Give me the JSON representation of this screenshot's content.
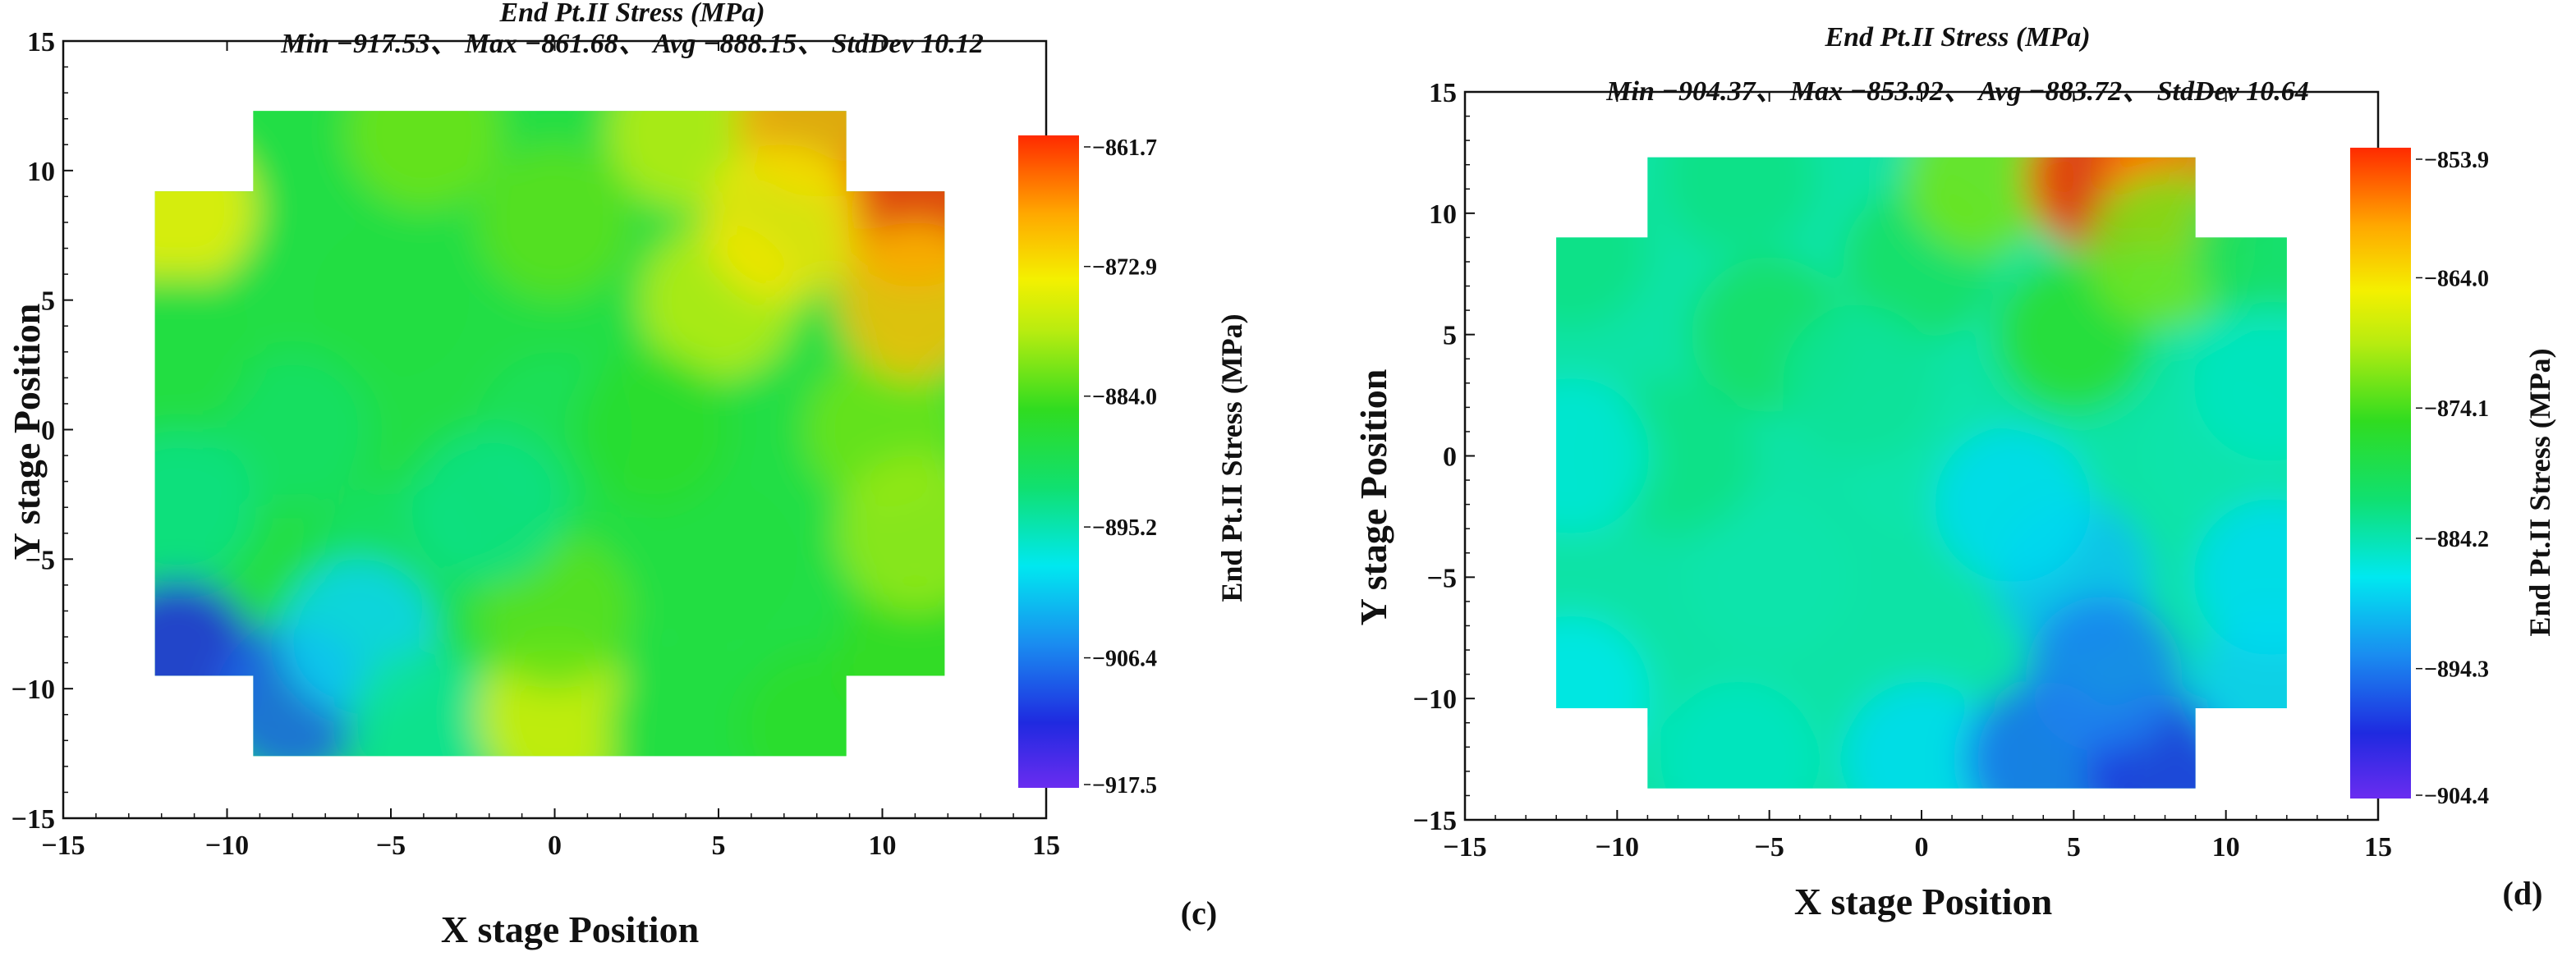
{
  "chart_data": [
    {
      "type": "heatmap",
      "panel_label": "(c)",
      "title": "End Pt.II Stress (MPa)",
      "stats_line": "Min −917.53、  Max −861.68、  Avg −888.15、  StdDev 10.12",
      "stats": {
        "min": -917.53,
        "max": -861.68,
        "avg": -888.15,
        "stddev": 10.12
      },
      "xlabel": "X stage Position",
      "ylabel": "Y stage Position",
      "xlim": [
        -15,
        15
      ],
      "ylim": [
        -15,
        15
      ],
      "x_ticks": [
        -15,
        -10,
        -5,
        0,
        5,
        10,
        15
      ],
      "y_ticks": [
        -15,
        -10,
        -5,
        0,
        5,
        10,
        15
      ],
      "x_tick_labels": [
        "−15",
        "−10",
        "−5",
        "0",
        "5",
        "10",
        "15"
      ],
      "y_tick_labels": [
        "−15",
        "−10",
        "−5",
        "0",
        "5",
        "10",
        "15"
      ],
      "region_outline": [
        [
          -9.2,
          12.3
        ],
        [
          8.9,
          12.3
        ],
        [
          8.9,
          9.2
        ],
        [
          11.9,
          9.2
        ],
        [
          11.9,
          -9.5
        ],
        [
          8.9,
          -9.5
        ],
        [
          8.9,
          -12.6
        ],
        [
          -9.2,
          -12.6
        ],
        [
          -9.2,
          -9.5
        ],
        [
          -12.2,
          -9.5
        ],
        [
          -12.2,
          9.2
        ],
        [
          -9.2,
          9.2
        ]
      ],
      "colorbar": {
        "label": "End Pt.II Stress (MPa)",
        "min": -917.53,
        "max": -861.68,
        "ticks": [
          -861.7,
          -872.9,
          -884.0,
          -895.2,
          -906.4,
          -917.5
        ],
        "tick_labels": [
          "−861.7",
          "−872.9",
          "−884.0",
          "−895.2",
          "−906.4",
          "−917.5"
        ]
      },
      "points": [
        {
          "x": 0,
          "y": 0,
          "v": -890
        },
        {
          "x": -5,
          "y": 5,
          "v": -888
        },
        {
          "x": 5,
          "y": 5,
          "v": -878
        },
        {
          "x": -5,
          "y": -5,
          "v": -891
        },
        {
          "x": 5,
          "y": -5,
          "v": -888
        },
        {
          "x": -8,
          "y": 0,
          "v": -891
        },
        {
          "x": 10,
          "y": 0,
          "v": -882
        },
        {
          "x": 0,
          "y": 8,
          "v": -883
        },
        {
          "x": -4,
          "y": 11.5,
          "v": -882
        },
        {
          "x": 4,
          "y": 11.5,
          "v": -878
        },
        {
          "x": 8,
          "y": 12,
          "v": -868
        },
        {
          "x": 11,
          "y": 8.5,
          "v": -862
        },
        {
          "x": 11,
          "y": 5,
          "v": -870
        },
        {
          "x": 7,
          "y": 8,
          "v": -873
        },
        {
          "x": -11.5,
          "y": 8.5,
          "v": -874
        },
        {
          "x": -11.5,
          "y": 3,
          "v": -888
        },
        {
          "x": -11.5,
          "y": -3,
          "v": -893
        },
        {
          "x": -11.5,
          "y": -8.8,
          "v": -912
        },
        {
          "x": -8,
          "y": -10.5,
          "v": -908
        },
        {
          "x": -6,
          "y": -8,
          "v": -900
        },
        {
          "x": -4,
          "y": -11.5,
          "v": -894
        },
        {
          "x": 0,
          "y": -11,
          "v": -876
        },
        {
          "x": 0,
          "y": -7,
          "v": -883
        },
        {
          "x": 4,
          "y": -11.5,
          "v": -888
        },
        {
          "x": 8,
          "y": -11.5,
          "v": -886
        },
        {
          "x": 11,
          "y": -8.5,
          "v": -885
        },
        {
          "x": 11,
          "y": -4,
          "v": -880
        },
        {
          "x": -2,
          "y": -3,
          "v": -893
        },
        {
          "x": 3,
          "y": 0,
          "v": -886
        }
      ]
    },
    {
      "type": "heatmap",
      "panel_label": "(d)",
      "title": "End Pt.II Stress (MPa)",
      "stats_line": "Min −904.37、  Max −853.92、  Avg −883.72、  StdDev 10.64",
      "stats": {
        "min": -904.37,
        "max": -853.92,
        "avg": -883.72,
        "stddev": 10.64
      },
      "xlabel": "X stage Position",
      "ylabel": "Y stage Position",
      "xlim": [
        -15,
        15
      ],
      "ylim": [
        -15,
        15
      ],
      "x_ticks": [
        -15,
        -10,
        -5,
        0,
        5,
        10,
        15
      ],
      "y_ticks": [
        -15,
        -10,
        -5,
        0,
        5,
        10,
        15
      ],
      "x_tick_labels": [
        "−15",
        "−10",
        "−5",
        "0",
        "5",
        "10",
        "15"
      ],
      "y_tick_labels": [
        "−15",
        "−10",
        "−5",
        "0",
        "5",
        "10",
        "15"
      ],
      "region_outline": [
        [
          -9,
          12.3
        ],
        [
          9,
          12.3
        ],
        [
          9,
          9
        ],
        [
          12,
          9
        ],
        [
          12,
          -10.4
        ],
        [
          9,
          -10.4
        ],
        [
          9,
          -13.7
        ],
        [
          -9,
          -13.7
        ],
        [
          -9,
          -10.4
        ],
        [
          -12,
          -10.4
        ],
        [
          -12,
          9
        ],
        [
          -9,
          9
        ]
      ],
      "colorbar": {
        "label": "End Pt.II Stress (MPa)",
        "min": -904.37,
        "max": -853.92,
        "ticks": [
          -853.9,
          -864.0,
          -874.1,
          -884.2,
          -894.3,
          -904.4
        ],
        "tick_labels": [
          "−853.9",
          "−864.0",
          "−874.1",
          "−884.2",
          "−894.3",
          "−904.4"
        ]
      },
      "points": [
        {
          "x": 0,
          "y": 0,
          "v": -884
        },
        {
          "x": -5,
          "y": 5,
          "v": -880
        },
        {
          "x": 5,
          "y": 5,
          "v": -876
        },
        {
          "x": -5,
          "y": -5,
          "v": -884
        },
        {
          "x": 5,
          "y": -5,
          "v": -890
        },
        {
          "x": -8,
          "y": 0,
          "v": -882
        },
        {
          "x": 10,
          "y": 0,
          "v": -884
        },
        {
          "x": 0,
          "y": 8,
          "v": -880
        },
        {
          "x": -6,
          "y": 11.5,
          "v": -882
        },
        {
          "x": 2,
          "y": 11.5,
          "v": -872
        },
        {
          "x": 6,
          "y": 11.5,
          "v": -854
        },
        {
          "x": 8.5,
          "y": 11.5,
          "v": -858
        },
        {
          "x": 8,
          "y": 8.5,
          "v": -872
        },
        {
          "x": 11.5,
          "y": 8.5,
          "v": -880
        },
        {
          "x": 11.5,
          "y": 3,
          "v": -885
        },
        {
          "x": -11.5,
          "y": 8.5,
          "v": -882
        },
        {
          "x": -11.5,
          "y": 0,
          "v": -886
        },
        {
          "x": -11.5,
          "y": -9.8,
          "v": -887
        },
        {
          "x": -6,
          "y": -12.5,
          "v": -885
        },
        {
          "x": 0,
          "y": -12.5,
          "v": -888
        },
        {
          "x": 4,
          "y": -12.5,
          "v": -895
        },
        {
          "x": 8,
          "y": -13,
          "v": -899
        },
        {
          "x": 6,
          "y": -9,
          "v": -894
        },
        {
          "x": 11.5,
          "y": -9.5,
          "v": -889
        },
        {
          "x": 11.5,
          "y": -5,
          "v": -888
        },
        {
          "x": 3,
          "y": -2,
          "v": -888
        },
        {
          "x": -2,
          "y": 3,
          "v": -883
        }
      ]
    }
  ]
}
